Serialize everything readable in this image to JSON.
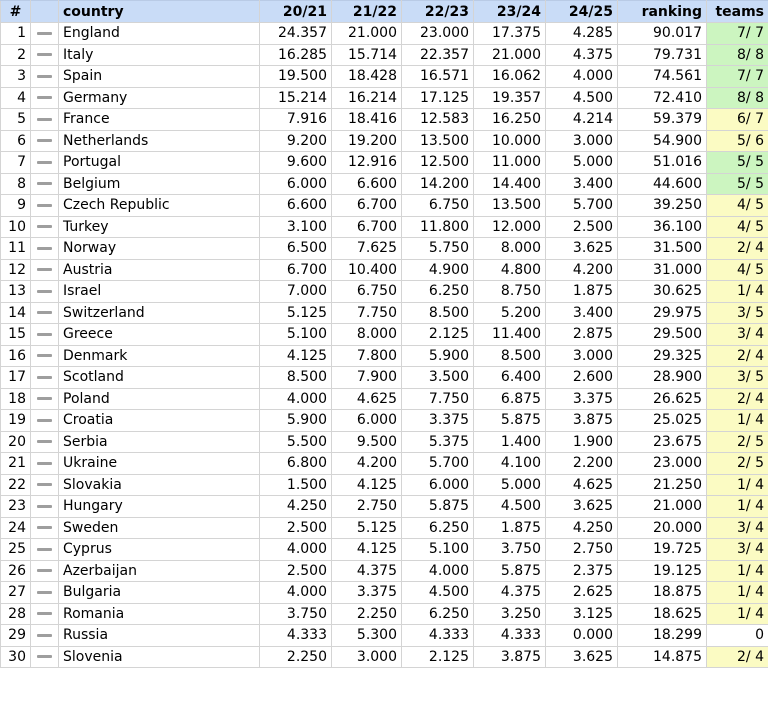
{
  "header": {
    "num": "#",
    "country": "country",
    "s1": "20/21",
    "s2": "21/22",
    "s3": "22/23",
    "s4": "23/24",
    "s5": "24/25",
    "ranking": "ranking",
    "teams": "teams"
  },
  "colors": {
    "header": "#c9dcf7",
    "green": "#ccf5c0",
    "yellow": "#fbfbc3",
    "trend": "#9e9e9e"
  },
  "rows": [
    {
      "num": "1",
      "country": "England",
      "s1": "24.357",
      "s2": "21.000",
      "s3": "23.000",
      "s4": "17.375",
      "s5": "4.285",
      "ranking": "90.017",
      "teams": "7/ 7",
      "color": "green"
    },
    {
      "num": "2",
      "country": "Italy",
      "s1": "16.285",
      "s2": "15.714",
      "s3": "22.357",
      "s4": "21.000",
      "s5": "4.375",
      "ranking": "79.731",
      "teams": "8/ 8",
      "color": "green"
    },
    {
      "num": "3",
      "country": "Spain",
      "s1": "19.500",
      "s2": "18.428",
      "s3": "16.571",
      "s4": "16.062",
      "s5": "4.000",
      "ranking": "74.561",
      "teams": "7/ 7",
      "color": "green"
    },
    {
      "num": "4",
      "country": "Germany",
      "s1": "15.214",
      "s2": "16.214",
      "s3": "17.125",
      "s4": "19.357",
      "s5": "4.500",
      "ranking": "72.410",
      "teams": "8/ 8",
      "color": "green"
    },
    {
      "num": "5",
      "country": "France",
      "s1": "7.916",
      "s2": "18.416",
      "s3": "12.583",
      "s4": "16.250",
      "s5": "4.214",
      "ranking": "59.379",
      "teams": "6/ 7",
      "color": "yellow"
    },
    {
      "num": "6",
      "country": "Netherlands",
      "s1": "9.200",
      "s2": "19.200",
      "s3": "13.500",
      "s4": "10.000",
      "s5": "3.000",
      "ranking": "54.900",
      "teams": "5/ 6",
      "color": "yellow"
    },
    {
      "num": "7",
      "country": "Portugal",
      "s1": "9.600",
      "s2": "12.916",
      "s3": "12.500",
      "s4": "11.000",
      "s5": "5.000",
      "ranking": "51.016",
      "teams": "5/ 5",
      "color": "green"
    },
    {
      "num": "8",
      "country": "Belgium",
      "s1": "6.000",
      "s2": "6.600",
      "s3": "14.200",
      "s4": "14.400",
      "s5": "3.400",
      "ranking": "44.600",
      "teams": "5/ 5",
      "color": "green"
    },
    {
      "num": "9",
      "country": "Czech Republic",
      "s1": "6.600",
      "s2": "6.700",
      "s3": "6.750",
      "s4": "13.500",
      "s5": "5.700",
      "ranking": "39.250",
      "teams": "4/ 5",
      "color": "yellow"
    },
    {
      "num": "10",
      "country": "Turkey",
      "s1": "3.100",
      "s2": "6.700",
      "s3": "11.800",
      "s4": "12.000",
      "s5": "2.500",
      "ranking": "36.100",
      "teams": "4/ 5",
      "color": "yellow"
    },
    {
      "num": "11",
      "country": "Norway",
      "s1": "6.500",
      "s2": "7.625",
      "s3": "5.750",
      "s4": "8.000",
      "s5": "3.625",
      "ranking": "31.500",
      "teams": "2/ 4",
      "color": "yellow"
    },
    {
      "num": "12",
      "country": "Austria",
      "s1": "6.700",
      "s2": "10.400",
      "s3": "4.900",
      "s4": "4.800",
      "s5": "4.200",
      "ranking": "31.000",
      "teams": "4/ 5",
      "color": "yellow"
    },
    {
      "num": "13",
      "country": "Israel",
      "s1": "7.000",
      "s2": "6.750",
      "s3": "6.250",
      "s4": "8.750",
      "s5": "1.875",
      "ranking": "30.625",
      "teams": "1/ 4",
      "color": "yellow"
    },
    {
      "num": "14",
      "country": "Switzerland",
      "s1": "5.125",
      "s2": "7.750",
      "s3": "8.500",
      "s4": "5.200",
      "s5": "3.400",
      "ranking": "29.975",
      "teams": "3/ 5",
      "color": "yellow"
    },
    {
      "num": "15",
      "country": "Greece",
      "s1": "5.100",
      "s2": "8.000",
      "s3": "2.125",
      "s4": "11.400",
      "s5": "2.875",
      "ranking": "29.500",
      "teams": "3/ 4",
      "color": "yellow"
    },
    {
      "num": "16",
      "country": "Denmark",
      "s1": "4.125",
      "s2": "7.800",
      "s3": "5.900",
      "s4": "8.500",
      "s5": "3.000",
      "ranking": "29.325",
      "teams": "2/ 4",
      "color": "yellow"
    },
    {
      "num": "17",
      "country": "Scotland",
      "s1": "8.500",
      "s2": "7.900",
      "s3": "3.500",
      "s4": "6.400",
      "s5": "2.600",
      "ranking": "28.900",
      "teams": "3/ 5",
      "color": "yellow"
    },
    {
      "num": "18",
      "country": "Poland",
      "s1": "4.000",
      "s2": "4.625",
      "s3": "7.750",
      "s4": "6.875",
      "s5": "3.375",
      "ranking": "26.625",
      "teams": "2/ 4",
      "color": "yellow"
    },
    {
      "num": "19",
      "country": "Croatia",
      "s1": "5.900",
      "s2": "6.000",
      "s3": "3.375",
      "s4": "5.875",
      "s5": "3.875",
      "ranking": "25.025",
      "teams": "1/ 4",
      "color": "yellow"
    },
    {
      "num": "20",
      "country": "Serbia",
      "s1": "5.500",
      "s2": "9.500",
      "s3": "5.375",
      "s4": "1.400",
      "s5": "1.900",
      "ranking": "23.675",
      "teams": "2/ 5",
      "color": "yellow"
    },
    {
      "num": "21",
      "country": "Ukraine",
      "s1": "6.800",
      "s2": "4.200",
      "s3": "5.700",
      "s4": "4.100",
      "s5": "2.200",
      "ranking": "23.000",
      "teams": "2/ 5",
      "color": "yellow"
    },
    {
      "num": "22",
      "country": "Slovakia",
      "s1": "1.500",
      "s2": "4.125",
      "s3": "6.000",
      "s4": "5.000",
      "s5": "4.625",
      "ranking": "21.250",
      "teams": "1/ 4",
      "color": "yellow"
    },
    {
      "num": "23",
      "country": "Hungary",
      "s1": "4.250",
      "s2": "2.750",
      "s3": "5.875",
      "s4": "4.500",
      "s5": "3.625",
      "ranking": "21.000",
      "teams": "1/ 4",
      "color": "yellow"
    },
    {
      "num": "24",
      "country": "Sweden",
      "s1": "2.500",
      "s2": "5.125",
      "s3": "6.250",
      "s4": "1.875",
      "s5": "4.250",
      "ranking": "20.000",
      "teams": "3/ 4",
      "color": "yellow"
    },
    {
      "num": "25",
      "country": "Cyprus",
      "s1": "4.000",
      "s2": "4.125",
      "s3": "5.100",
      "s4": "3.750",
      "s5": "2.750",
      "ranking": "19.725",
      "teams": "3/ 4",
      "color": "yellow"
    },
    {
      "num": "26",
      "country": "Azerbaijan",
      "s1": "2.500",
      "s2": "4.375",
      "s3": "4.000",
      "s4": "5.875",
      "s5": "2.375",
      "ranking": "19.125",
      "teams": "1/ 4",
      "color": "yellow"
    },
    {
      "num": "27",
      "country": "Bulgaria",
      "s1": "4.000",
      "s2": "3.375",
      "s3": "4.500",
      "s4": "4.375",
      "s5": "2.625",
      "ranking": "18.875",
      "teams": "1/ 4",
      "color": "yellow"
    },
    {
      "num": "28",
      "country": "Romania",
      "s1": "3.750",
      "s2": "2.250",
      "s3": "6.250",
      "s4": "3.250",
      "s5": "3.125",
      "ranking": "18.625",
      "teams": "1/ 4",
      "color": "yellow"
    },
    {
      "num": "29",
      "country": "Russia",
      "s1": "4.333",
      "s2": "5.300",
      "s3": "4.333",
      "s4": "4.333",
      "s5": "0.000",
      "ranking": "18.299",
      "teams": "0",
      "color": "white"
    },
    {
      "num": "30",
      "country": "Slovenia",
      "s1": "2.250",
      "s2": "3.000",
      "s3": "2.125",
      "s4": "3.875",
      "s5": "3.625",
      "ranking": "14.875",
      "teams": "2/ 4",
      "color": "yellow"
    }
  ]
}
